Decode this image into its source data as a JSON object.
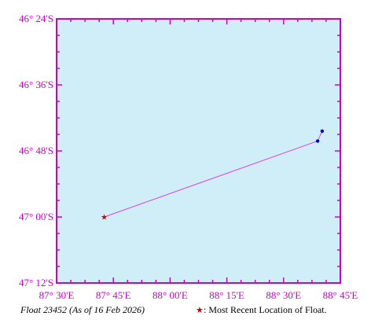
{
  "map": {
    "colors": {
      "ocean": "#d0eef8",
      "frame": "#cc00cc",
      "track": "#e040e0",
      "point": "#0000cc",
      "recent": "#cc0000"
    },
    "lon_range": [
      87.5,
      88.75
    ],
    "lat_range": [
      -47.2,
      -46.4
    ],
    "lat_labels": [
      {
        "value": -46.4,
        "text": "46° 24'S"
      },
      {
        "value": -46.6,
        "text": "46° 36'S"
      },
      {
        "value": -46.8,
        "text": "46° 48'S"
      },
      {
        "value": -47.0,
        "text": "47° 00'S"
      },
      {
        "value": -47.2,
        "text": "47° 12'S"
      }
    ],
    "lon_labels": [
      {
        "value": 87.5,
        "text": "87° 30'E"
      },
      {
        "value": 87.75,
        "text": "87° 45'E"
      },
      {
        "value": 88.0,
        "text": "88° 00'E"
      },
      {
        "value": 88.25,
        "text": "88° 15'E"
      },
      {
        "value": 88.5,
        "text": "88° 30'E"
      },
      {
        "value": 88.75,
        "text": "88° 45'E"
      }
    ],
    "track": [
      {
        "lon": 88.67,
        "lat": -46.74
      },
      {
        "lon": 88.65,
        "lat": -46.77
      },
      {
        "lon": 87.71,
        "lat": -47.0
      }
    ],
    "most_recent_index": 2,
    "caption_float": "Float 23452 (As of 16 Feb 2026)",
    "legend_marker": "★",
    "legend_text": ": Most Recent Location of Float."
  }
}
